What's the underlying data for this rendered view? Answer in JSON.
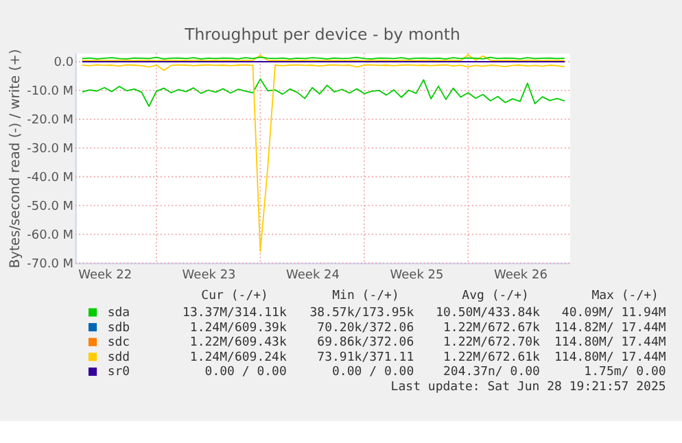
{
  "chart_data": {
    "type": "line",
    "title": "Throughput per device - by month",
    "ylabel": "Bytes/second read (-) / write (+)",
    "x": [
      "2025-05-27T00:00",
      "2025-05-27T12:00",
      "2025-05-28T00:00",
      "2025-05-28T12:00",
      "2025-05-29T00:00",
      "2025-05-29T12:00",
      "2025-05-30T00:00",
      "2025-05-30T12:00",
      "2025-05-31T00:00",
      "2025-05-31T12:00",
      "2025-06-01T00:00",
      "2025-06-01T12:00",
      "2025-06-02T00:00",
      "2025-06-02T12:00",
      "2025-06-03T00:00",
      "2025-06-03T12:00",
      "2025-06-04T00:00",
      "2025-06-04T12:00",
      "2025-06-05T00:00",
      "2025-06-05T12:00",
      "2025-06-06T00:00",
      "2025-06-06T12:00",
      "2025-06-07T00:00",
      "2025-06-07T12:00",
      "2025-06-08T00:00",
      "2025-06-08T12:00",
      "2025-06-09T00:00",
      "2025-06-09T12:00",
      "2025-06-10T00:00",
      "2025-06-10T12:00",
      "2025-06-11T00:00",
      "2025-06-11T12:00",
      "2025-06-12T00:00",
      "2025-06-12T12:00",
      "2025-06-13T00:00",
      "2025-06-13T12:00",
      "2025-06-14T00:00",
      "2025-06-14T12:00",
      "2025-06-15T00:00",
      "2025-06-15T12:00",
      "2025-06-16T00:00",
      "2025-06-16T12:00",
      "2025-06-17T00:00",
      "2025-06-17T12:00",
      "2025-06-18T00:00",
      "2025-06-18T12:00",
      "2025-06-19T00:00",
      "2025-06-19T12:00",
      "2025-06-20T00:00",
      "2025-06-20T12:00",
      "2025-06-21T00:00",
      "2025-06-21T12:00",
      "2025-06-22T00:00",
      "2025-06-22T12:00",
      "2025-06-23T00:00",
      "2025-06-23T12:00",
      "2025-06-24T00:00",
      "2025-06-24T12:00",
      "2025-06-25T00:00",
      "2025-06-25T12:00",
      "2025-06-26T00:00",
      "2025-06-26T12:00",
      "2025-06-27T00:00",
      "2025-06-27T12:00",
      "2025-06-28T00:00",
      "2025-06-28T12:00"
    ],
    "xlim": [
      "2025-05-26T13:00",
      "2025-06-28T20:00"
    ],
    "xticks": [
      {
        "value": "2025-05-28T12:00",
        "label": "Week 22"
      },
      {
        "value": "2025-06-04T12:00",
        "label": "Week 23"
      },
      {
        "value": "2025-06-11T12:00",
        "label": "Week 24"
      },
      {
        "value": "2025-06-18T12:00",
        "label": "Week 25"
      },
      {
        "value": "2025-06-25T12:00",
        "label": "Week 26"
      },
      {
        "value": "2025-06-01T00:00",
        "label": null
      },
      {
        "value": "2025-06-08T00:00",
        "label": null
      },
      {
        "value": "2025-06-15T00:00",
        "label": null
      },
      {
        "value": "2025-06-22T00:00",
        "label": null
      }
    ],
    "ylim": [
      -70,
      3
    ],
    "yticks": [
      {
        "value": 0,
        "label": "0.0"
      },
      {
        "value": -10,
        "label": "-10.0 M"
      },
      {
        "value": -20,
        "label": "-20.0 M"
      },
      {
        "value": -30,
        "label": "-30.0 M"
      },
      {
        "value": -40,
        "label": "-40.0 M"
      },
      {
        "value": -50,
        "label": "-50.0 M"
      },
      {
        "value": -60,
        "label": "-60.0 M"
      },
      {
        "value": -70,
        "label": "-70.0 M"
      }
    ],
    "grid": true,
    "legend": "bottom",
    "line_style": "solid",
    "series": [
      {
        "name": "sda",
        "color": "#00cc00",
        "values": [
          -10.5,
          -9.8,
          -10.2,
          -9.0,
          -10.4,
          -8.6,
          -10.1,
          -9.5,
          -10.6,
          -15.5,
          -10.3,
          -9.2,
          -10.8,
          -9.7,
          -10.4,
          -9.1,
          -11.0,
          -9.9,
          -10.6,
          -9.4,
          -10.9,
          -9.6,
          -10.2,
          -10.8,
          -6.0,
          -10.1,
          -9.8,
          -11.3,
          -9.5,
          -10.7,
          -12.8,
          -9.0,
          -11.2,
          -8.2,
          -10.5,
          -9.6,
          -10.9,
          -9.4,
          -11.1,
          -10.3,
          -10.0,
          -11.6,
          -9.8,
          -12.4,
          -9.9,
          -11.0,
          -6.3,
          -12.9,
          -8.5,
          -13.1,
          -9.2,
          -12.3,
          -10.8,
          -12.7,
          -11.4,
          -13.6,
          -12.1,
          -14.2,
          -12.9,
          -13.8,
          -7.5,
          -14.6,
          -12.2,
          -13.5,
          -12.8,
          -13.6
        ]
      },
      {
        "name": "sdb",
        "color": "#0066b3",
        "values": [
          null,
          null,
          null,
          null,
          null,
          null,
          null,
          null,
          null,
          null,
          null,
          null,
          null,
          null,
          null,
          null,
          null,
          null,
          null,
          null,
          null,
          null,
          null,
          null,
          null,
          null,
          null,
          null,
          null,
          null,
          null,
          null,
          null,
          null,
          null,
          null,
          null,
          null,
          null,
          null,
          null,
          null,
          null,
          null,
          null,
          null,
          null,
          null,
          null,
          null,
          null,
          null,
          null,
          null,
          null,
          null,
          null,
          null,
          null,
          null,
          null,
          null,
          null,
          null,
          null,
          null
        ]
      },
      {
        "name": "sdc",
        "color": "#ff8000",
        "values": [
          null,
          null,
          null,
          null,
          null,
          null,
          null,
          null,
          null,
          null,
          null,
          null,
          null,
          null,
          null,
          null,
          null,
          null,
          null,
          null,
          null,
          null,
          null,
          null,
          null,
          null,
          null,
          null,
          null,
          null,
          null,
          null,
          null,
          null,
          null,
          null,
          null,
          null,
          null,
          null,
          null,
          null,
          null,
          null,
          null,
          null,
          null,
          null,
          null,
          null,
          null,
          null,
          null,
          null,
          null,
          null,
          null,
          null,
          null,
          null,
          null,
          null,
          null,
          null,
          null,
          null
        ]
      },
      {
        "name": "sdd",
        "color": "#ffcc00",
        "values": [
          -1.2,
          -1.4,
          -1.1,
          -1.3,
          -1.2,
          -1.5,
          -1.1,
          -1.2,
          -1.4,
          -1.8,
          -1.2,
          -3.0,
          -1.3,
          -1.1,
          -1.2,
          -1.4,
          -1.2,
          -1.1,
          -1.3,
          -1.2,
          -1.4,
          -1.2,
          -1.1,
          -1.3,
          -66.0,
          -37.0,
          -1.2,
          -1.4,
          -1.2,
          -1.1,
          -1.3,
          -1.2,
          -1.5,
          -1.2,
          -1.1,
          -1.3,
          -1.2,
          -1.8,
          -1.2,
          -1.1,
          -1.3,
          -1.2,
          -1.4,
          -1.2,
          -1.1,
          -1.3,
          -1.2,
          -1.4,
          -1.2,
          -1.1,
          -1.5,
          -1.2,
          -1.8,
          -1.3,
          -1.6,
          -1.2,
          -1.4,
          -1.7,
          -1.3,
          -1.2,
          -1.5,
          -1.3,
          -1.6,
          -1.2,
          -1.4,
          -1.7
        ]
      },
      {
        "color": "#ffcc00",
        "values": [
          0.5,
          0.4,
          0.5,
          0.5,
          0.4,
          0.5,
          0.5,
          0.4,
          0.5,
          0.5,
          0.4,
          0.5,
          0.5,
          0.4,
          0.5,
          0.5,
          0.5,
          0.4,
          0.5,
          0.5,
          0.5,
          0.4,
          0.5,
          0.5,
          2.2,
          0.5,
          0.4,
          0.5,
          0.5,
          0.4,
          0.5,
          0.5,
          0.4,
          0.5,
          0.5,
          0.4,
          0.5,
          0.5,
          0.4,
          0.5,
          0.5,
          0.5,
          0.4,
          0.5,
          0.5,
          0.4,
          0.5,
          0.5,
          0.4,
          0.5,
          0.5,
          0.4,
          2.4,
          0.5,
          2.0,
          0.5,
          0.4,
          0.5,
          0.5,
          0.4,
          0.5,
          0.5,
          0.4,
          0.5,
          0.5,
          0.4
        ]
      },
      {
        "color": "#00cc00",
        "values": [
          1.1,
          1.3,
          1.0,
          1.2,
          1.4,
          1.1,
          1.0,
          1.3,
          1.2,
          1.1,
          1.5,
          1.0,
          1.2,
          1.3,
          1.1,
          1.4,
          1.0,
          1.2,
          1.1,
          1.3,
          1.2,
          1.0,
          1.4,
          1.1,
          1.6,
          1.2,
          1.1,
          1.3,
          1.0,
          1.2,
          1.1,
          1.4,
          1.2,
          1.0,
          1.3,
          1.1,
          1.2,
          1.5,
          1.1,
          1.0,
          1.3,
          1.2,
          1.1,
          1.4,
          1.0,
          1.2,
          1.3,
          1.1,
          1.2,
          1.0,
          1.4,
          1.1,
          1.3,
          1.2,
          1.0,
          1.5,
          1.1,
          1.3,
          1.2,
          1.0,
          1.4,
          1.1,
          1.2,
          1.3,
          1.1,
          1.2
        ]
      },
      {
        "name": "sr0",
        "color": "#330099",
        "values": [
          0,
          0,
          0,
          0,
          0,
          0,
          0,
          0,
          0,
          0,
          0,
          0,
          0,
          0,
          0,
          0,
          0,
          0,
          0,
          0,
          0,
          0,
          0,
          0,
          0,
          0,
          0,
          0,
          0,
          0,
          0,
          0,
          0,
          0,
          0,
          0,
          0,
          0,
          0,
          0,
          0,
          0,
          0,
          0,
          0,
          0,
          0,
          0,
          0,
          0,
          0,
          0,
          0,
          0,
          0,
          0,
          0,
          0,
          0,
          0,
          0,
          0,
          0,
          0,
          0,
          0
        ]
      }
    ],
    "annotations": [
      "Cur (-/+)",
      "Min (-/+)",
      "Avg (-/+)",
      "Max (-/+)",
      "13.37M/314.11k",
      "38.57k/173.95k",
      "10.50M/433.84k",
      "40.09M/ 11.94M",
      "1.24M/609.39k",
      "70.20k/372.06",
      "1.22M/672.67k",
      "114.82M/ 17.44M",
      "1.22M/609.43k",
      "69.86k/372.06",
      "1.22M/672.70k",
      "114.80M/ 17.44M",
      "1.24M/609.24k",
      "73.91k/371.11",
      "1.22M/672.61k",
      "114.80M/ 17.44M",
      "0.00 /  0.00",
      "0.00 /  0.00",
      "204.37n/  0.00",
      "1.75m/  0.00",
      "Last update: Sat Jun 28 19:21:57 2025"
    ]
  }
}
